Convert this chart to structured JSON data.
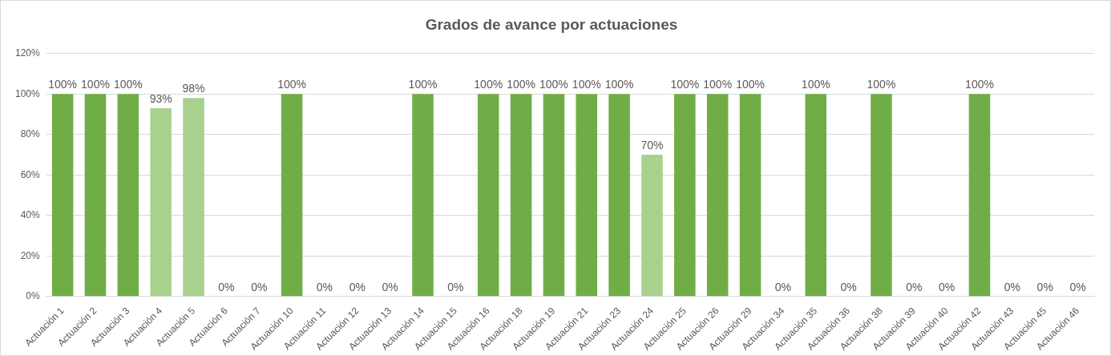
{
  "chart_data": {
    "type": "bar",
    "title": "Grados de avance por actuaciones",
    "categories": [
      "Actuación 1",
      "Actuación 2",
      "Actuación 3",
      "Actuación 4",
      "Actuación 5",
      "Actuación 6",
      "Actuación 7",
      "Actuación 10",
      "Actuación 11",
      "Actuación 12",
      "Actuación 13",
      "Actuación 14",
      "Actuación 15",
      "Actuación 16",
      "Actuación 18",
      "Actuación 19",
      "Actuación 21",
      "Actuación 23",
      "Actuación 24",
      "Actuación 25",
      "Actuación 26",
      "Actuación 29",
      "Actuación 34",
      "Actuación 35",
      "Actuación 36",
      "Actuación 38",
      "Actuación 39",
      "Actuación 40",
      "Actuación 42",
      "Actuación 43",
      "Actuación 45",
      "Actuación 46"
    ],
    "values": [
      100,
      100,
      100,
      93,
      98,
      0,
      0,
      100,
      0,
      0,
      0,
      100,
      0,
      100,
      100,
      100,
      100,
      100,
      70,
      100,
      100,
      100,
      0,
      100,
      0,
      100,
      0,
      0,
      100,
      0,
      0,
      0
    ],
    "colors": [
      "#70ad47",
      "#70ad47",
      "#70ad47",
      "#a9d18e",
      "#a9d18e",
      "#70ad47",
      "#70ad47",
      "#70ad47",
      "#70ad47",
      "#70ad47",
      "#70ad47",
      "#70ad47",
      "#70ad47",
      "#70ad47",
      "#70ad47",
      "#70ad47",
      "#70ad47",
      "#70ad47",
      "#a9d18e",
      "#70ad47",
      "#70ad47",
      "#70ad47",
      "#70ad47",
      "#70ad47",
      "#70ad47",
      "#70ad47",
      "#70ad47",
      "#70ad47",
      "#70ad47",
      "#70ad47",
      "#70ad47",
      "#70ad47"
    ],
    "value_labels": [
      "100%",
      "100%",
      "100%",
      "93%",
      "98%",
      "0%",
      "0%",
      "100%",
      "0%",
      "0%",
      "0%",
      "100%",
      "0%",
      "100%",
      "100%",
      "100%",
      "100%",
      "100%",
      "70%",
      "100%",
      "100%",
      "100%",
      "0%",
      "100%",
      "0%",
      "100%",
      "0%",
      "0%",
      "100%",
      "0%",
      "0%",
      "0%"
    ],
    "ylim": [
      0,
      120
    ],
    "yticks": [
      {
        "value": 0,
        "label": "0%"
      },
      {
        "value": 20,
        "label": "20%"
      },
      {
        "value": 40,
        "label": "40%"
      },
      {
        "value": 60,
        "label": "60%"
      },
      {
        "value": 80,
        "label": "80%"
      },
      {
        "value": 100,
        "label": "100%"
      },
      {
        "value": 120,
        "label": "120%"
      }
    ],
    "grid": "y"
  }
}
